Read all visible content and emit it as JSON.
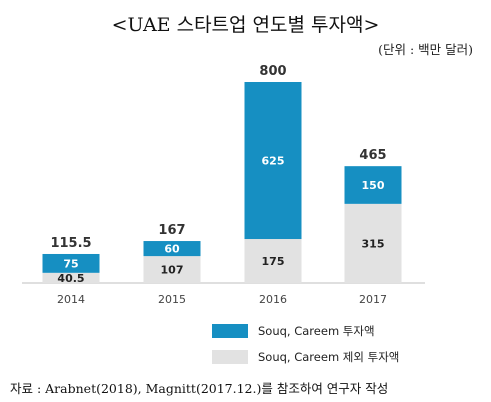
{
  "title": "<UAE 스타트업 연도별 투자액>",
  "unit": "(단위 : 백만 달러)",
  "source": "자료 : Arabnet(2018), Magnitt(2017.12.)를 참조하여 연구자 작성",
  "colors": {
    "souq_careem": "#168fc2",
    "other": "#e2e2e2",
    "axis": "#bfbfbf"
  },
  "chart_data": {
    "type": "bar",
    "stacked": true,
    "categories": [
      "2014",
      "2015",
      "2016",
      "2017"
    ],
    "series": [
      {
        "name": "Souq, Careem 제외 투자액",
        "values": [
          40.5,
          107,
          175,
          315
        ],
        "labels": [
          "40.5",
          "107",
          "175",
          "315"
        ],
        "color": "#e2e2e2"
      },
      {
        "name": "Souq, Careem 투자액",
        "values": [
          75,
          60,
          625,
          150
        ],
        "labels": [
          "75",
          "60",
          "625",
          "150"
        ],
        "color": "#168fc2"
      }
    ],
    "totals": [
      115.5,
      167,
      800,
      465
    ],
    "total_labels": [
      "115.5",
      "167",
      "800",
      "465"
    ],
    "ylim": [
      0,
      800
    ],
    "legend": [
      {
        "label": "Souq, Careem 투자액",
        "color": "#168fc2"
      },
      {
        "label": "Souq, Careem 제외 투자액",
        "color": "#e2e2e2"
      }
    ],
    "legend_position": "bottom-right",
    "grid": false
  }
}
